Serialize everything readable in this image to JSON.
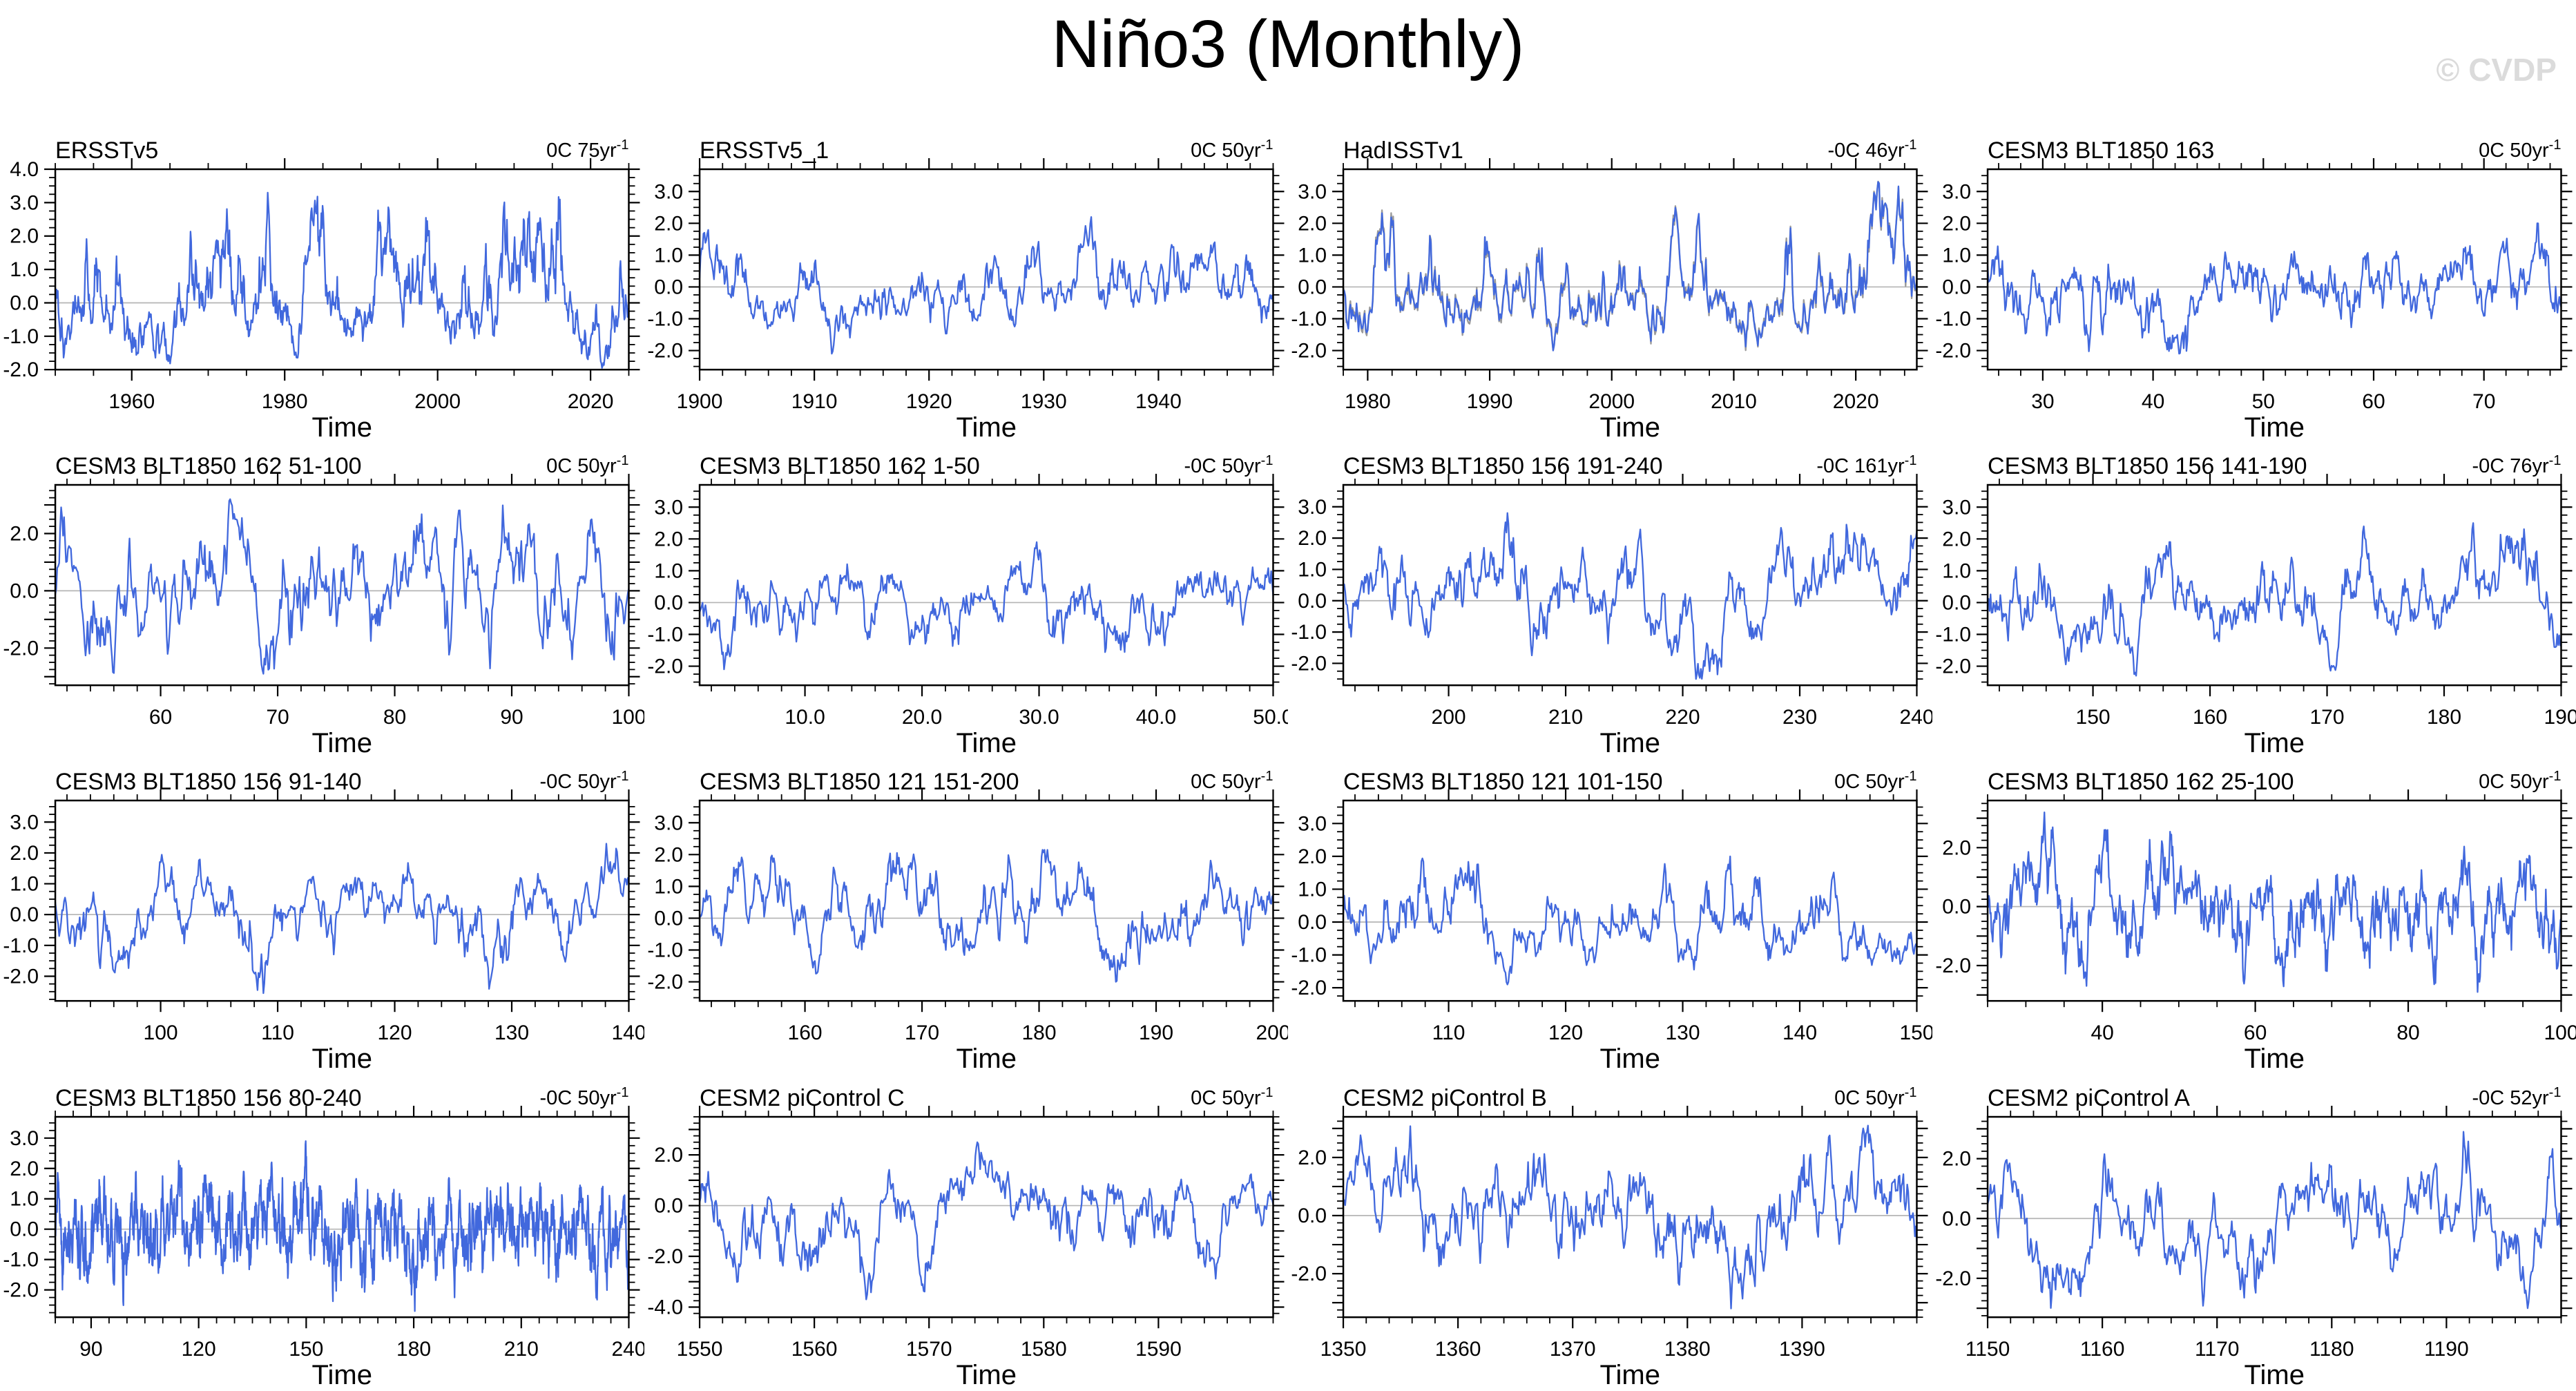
{
  "header": {
    "title": "Niño3 (Monthly)",
    "watermark": "© CVDP"
  },
  "colors": {
    "series_primary": "#4168dd",
    "series_secondary": "#9a9a9a",
    "zero_line": "#b4b4b4",
    "frame": "#000000",
    "watermark": "#dbdbdb"
  },
  "axis": {
    "xlabel": "Time"
  },
  "chart_data": [
    {
      "type": "line",
      "title": "ERSSTv5",
      "trend_label": "0C 75yr",
      "trend_sup": "-1",
      "xlabel": "Time",
      "xlim": [
        1950,
        2025
      ],
      "xticks": [
        1960,
        1980,
        2000,
        2020
      ],
      "xtick_labels": [
        "1960",
        "1980",
        "2000",
        "2020"
      ],
      "x_minor_step": 5,
      "ylim": [
        -2,
        4
      ],
      "ytick_major_step": 1,
      "y_minor_step": 0.25,
      "ytick_label_values": [
        -2,
        -1,
        0,
        1,
        2,
        3,
        4
      ],
      "ytick_labels": [
        "-2.0",
        "-1.0",
        "0.0",
        "1.0",
        "2.0",
        "3.0",
        "4.0"
      ],
      "zero_line": true,
      "series": [
        {
          "name": "nino3-sst-anomaly",
          "color": "#4168dd",
          "seed": 101,
          "n_points": 900,
          "persistence": 0.93,
          "approx_max": 3.3,
          "approx_min": -1.95
        }
      ]
    },
    {
      "type": "line",
      "title": "ERSSTv5_1",
      "trend_label": "0C 50yr",
      "trend_sup": "-1",
      "xlabel": "Time",
      "xlim": [
        1900,
        1950
      ],
      "xticks": [
        1900,
        1910,
        1920,
        1930,
        1940
      ],
      "xtick_labels": [
        "1900",
        "1910",
        "1920",
        "1930",
        "1940"
      ],
      "x_minor_step": 2,
      "ylim": [
        -2.6,
        3.7
      ],
      "ytick_major_step": 1,
      "y_minor_step": 0.25,
      "ytick_label_values": [
        -2,
        -1,
        0,
        1,
        2,
        3
      ],
      "ytick_labels": [
        "-2.0",
        "-1.0",
        "0.0",
        "1.0",
        "2.0",
        "3.0"
      ],
      "zero_line": true,
      "series": [
        {
          "name": "nino3-sst-anomaly",
          "color": "#4168dd",
          "seed": 102,
          "n_points": 600,
          "persistence": 0.93,
          "approx_max": 2.2,
          "approx_min": -2.1
        }
      ]
    },
    {
      "type": "line",
      "title": "HadISSTv1",
      "trend_label": "-0C 46yr",
      "trend_sup": "-1",
      "xlabel": "Time",
      "xlim": [
        1978,
        2025
      ],
      "xticks": [
        1980,
        1990,
        2000,
        2010,
        2020
      ],
      "xtick_labels": [
        "1980",
        "1990",
        "2000",
        "2010",
        "2020"
      ],
      "x_minor_step": 2,
      "ylim": [
        -2.6,
        3.7
      ],
      "ytick_major_step": 1,
      "y_minor_step": 0.25,
      "ytick_label_values": [
        -2,
        -1,
        0,
        1,
        2,
        3
      ],
      "ytick_labels": [
        "-2.0",
        "-1.0",
        "0.0",
        "1.0",
        "2.0",
        "3.0"
      ],
      "zero_line": true,
      "series": [
        {
          "name": "nino3-sst-anomaly",
          "color": "#4168dd",
          "seed": 103,
          "n_points": 564,
          "persistence": 0.93,
          "approx_max": 3.3,
          "approx_min": -2.0
        },
        {
          "name": "nino3-sst-anomaly-raw",
          "color": "#9a9a9a",
          "seed": 203,
          "derived_from_primary": true,
          "offset_noise": 0.28
        }
      ]
    },
    {
      "type": "line",
      "title": "CESM3 BLT1850 163",
      "trend_label": "0C 50yr",
      "trend_sup": "-1",
      "xlabel": "Time",
      "xlim": [
        25,
        77
      ],
      "xticks": [
        30,
        40,
        50,
        60,
        70
      ],
      "xtick_labels": [
        "30",
        "40",
        "50",
        "60",
        "70"
      ],
      "x_minor_step": 2,
      "ylim": [
        -2.6,
        3.7
      ],
      "ytick_major_step": 1,
      "y_minor_step": 0.25,
      "ytick_label_values": [
        -2,
        -1,
        0,
        1,
        2,
        3
      ],
      "ytick_labels": [
        "-2.0",
        "-1.0",
        "0.0",
        "1.0",
        "2.0",
        "3.0"
      ],
      "zero_line": true,
      "series": [
        {
          "name": "nino3-sst-anomaly",
          "color": "#4168dd",
          "seed": 104,
          "n_points": 624,
          "persistence": 0.92,
          "approx_max": 2.0,
          "approx_min": -2.1
        }
      ]
    },
    {
      "type": "line",
      "title": "CESM3 BLT1850 162 51-100",
      "trend_label": "0C 50yr",
      "trend_sup": "-1",
      "xlabel": "Time",
      "xlim": [
        51,
        100
      ],
      "xticks": [
        60,
        70,
        80,
        90,
        100
      ],
      "xtick_labels": [
        "60",
        "70",
        "80",
        "90",
        "100"
      ],
      "x_minor_step": 2,
      "ylim": [
        -3.3,
        3.7
      ],
      "ytick_major_step": 1,
      "y_minor_step": 0.25,
      "ytick_label_values": [
        -2,
        0,
        2
      ],
      "ytick_labels": [
        "-2.0",
        "0.0",
        "2.0"
      ],
      "zero_line": true,
      "series": [
        {
          "name": "nino3-sst-anomaly",
          "color": "#4168dd",
          "seed": 105,
          "n_points": 588,
          "persistence": 0.93,
          "approx_max": 3.2,
          "approx_min": -2.9
        }
      ]
    },
    {
      "type": "line",
      "title": "CESM3 BLT1850 162 1-50",
      "trend_label": "-0C 50yr",
      "trend_sup": "-1",
      "xlabel": "Time",
      "xlim": [
        1,
        50
      ],
      "xticks": [
        10,
        20,
        30,
        40,
        50
      ],
      "xtick_labels": [
        "10.0",
        "20.0",
        "30.0",
        "40.0",
        "50.0"
      ],
      "x_minor_step": 2,
      "ylim": [
        -2.6,
        3.7
      ],
      "ytick_major_step": 1,
      "y_minor_step": 0.25,
      "ytick_label_values": [
        -2,
        -1,
        0,
        1,
        2,
        3
      ],
      "ytick_labels": [
        "-2.0",
        "-1.0",
        "0.0",
        "1.0",
        "2.0",
        "3.0"
      ],
      "zero_line": true,
      "series": [
        {
          "name": "nino3-sst-anomaly",
          "color": "#4168dd",
          "seed": 106,
          "n_points": 588,
          "persistence": 0.93,
          "approx_max": 1.9,
          "approx_min": -2.1
        }
      ]
    },
    {
      "type": "line",
      "title": "CESM3 BLT1850 156 191-240",
      "trend_label": "-0C 161yr",
      "trend_sup": "-1",
      "xlabel": "Time",
      "xlim": [
        191,
        240
      ],
      "xticks": [
        200,
        210,
        220,
        230,
        240
      ],
      "xtick_labels": [
        "200",
        "210",
        "220",
        "230",
        "240"
      ],
      "x_minor_step": 2,
      "ylim": [
        -2.7,
        3.7
      ],
      "ytick_major_step": 1,
      "y_minor_step": 0.25,
      "ytick_label_values": [
        -2,
        -1,
        0,
        1,
        2,
        3
      ],
      "ytick_labels": [
        "-2.0",
        "-1.0",
        "0.0",
        "1.0",
        "2.0",
        "3.0"
      ],
      "zero_line": true,
      "series": [
        {
          "name": "nino3-sst-anomaly",
          "color": "#4168dd",
          "seed": 107,
          "n_points": 588,
          "persistence": 0.93,
          "approx_max": 2.8,
          "approx_min": -2.5
        }
      ]
    },
    {
      "type": "line",
      "title": "CESM3 BLT1850 156 141-190",
      "trend_label": "-0C 76yr",
      "trend_sup": "-1",
      "xlabel": "Time",
      "xlim": [
        141,
        190
      ],
      "xticks": [
        150,
        160,
        170,
        180,
        190
      ],
      "xtick_labels": [
        "150",
        "160",
        "170",
        "180",
        "190"
      ],
      "x_minor_step": 2,
      "ylim": [
        -2.6,
        3.7
      ],
      "ytick_major_step": 1,
      "y_minor_step": 0.25,
      "ytick_label_values": [
        -2,
        -1,
        0,
        1,
        2,
        3
      ],
      "ytick_labels": [
        "-2.0",
        "-1.0",
        "0.0",
        "1.0",
        "2.0",
        "3.0"
      ],
      "zero_line": true,
      "series": [
        {
          "name": "nino3-sst-anomaly",
          "color": "#4168dd",
          "seed": 108,
          "n_points": 588,
          "persistence": 0.93,
          "approx_max": 2.5,
          "approx_min": -2.3
        }
      ]
    },
    {
      "type": "line",
      "title": "CESM3 BLT1850 156 91-140",
      "trend_label": "-0C 50yr",
      "trend_sup": "-1",
      "xlabel": "Time",
      "xlim": [
        91,
        140
      ],
      "xticks": [
        100,
        110,
        120,
        130,
        140
      ],
      "xtick_labels": [
        "100",
        "110",
        "120",
        "130",
        "140"
      ],
      "x_minor_step": 2,
      "ylim": [
        -2.8,
        3.7
      ],
      "ytick_major_step": 1,
      "y_minor_step": 0.25,
      "ytick_label_values": [
        -2,
        -1,
        0,
        1,
        2,
        3
      ],
      "ytick_labels": [
        "-2.0",
        "-1.0",
        "0.0",
        "1.0",
        "2.0",
        "3.0"
      ],
      "zero_line": true,
      "series": [
        {
          "name": "nino3-sst-anomaly",
          "color": "#4168dd",
          "seed": 109,
          "n_points": 588,
          "persistence": 0.93,
          "approx_max": 2.3,
          "approx_min": -2.55
        }
      ]
    },
    {
      "type": "line",
      "title": "CESM3 BLT1850 121 151-200",
      "trend_label": "0C 50yr",
      "trend_sup": "-1",
      "xlabel": "Time",
      "xlim": [
        151,
        200
      ],
      "xticks": [
        160,
        170,
        180,
        190,
        200
      ],
      "xtick_labels": [
        "160",
        "170",
        "180",
        "190",
        "200"
      ],
      "x_minor_step": 2,
      "ylim": [
        -2.6,
        3.7
      ],
      "ytick_major_step": 1,
      "y_minor_step": 0.25,
      "ytick_label_values": [
        -2,
        -1,
        0,
        1,
        2,
        3
      ],
      "ytick_labels": [
        "-2.0",
        "-1.0",
        "0.0",
        "1.0",
        "2.0",
        "3.0"
      ],
      "zero_line": true,
      "series": [
        {
          "name": "nino3-sst-anomaly",
          "color": "#4168dd",
          "seed": 110,
          "n_points": 588,
          "persistence": 0.93,
          "approx_max": 2.15,
          "approx_min": -2.0
        }
      ]
    },
    {
      "type": "line",
      "title": "CESM3 BLT1850 121 101-150",
      "trend_label": "0C 50yr",
      "trend_sup": "-1",
      "xlabel": "Time",
      "xlim": [
        101,
        150
      ],
      "xticks": [
        110,
        120,
        130,
        140,
        150
      ],
      "xtick_labels": [
        "110",
        "120",
        "130",
        "140",
        "150"
      ],
      "x_minor_step": 2,
      "ylim": [
        -2.4,
        3.7
      ],
      "ytick_major_step": 1,
      "y_minor_step": 0.25,
      "ytick_label_values": [
        -2,
        -1,
        0,
        1,
        2,
        3
      ],
      "ytick_labels": [
        "-2.0",
        "-1.0",
        "0.0",
        "1.0",
        "2.0",
        "3.0"
      ],
      "zero_line": true,
      "series": [
        {
          "name": "nino3-sst-anomaly",
          "color": "#4168dd",
          "seed": 111,
          "n_points": 588,
          "persistence": 0.93,
          "approx_max": 2.0,
          "approx_min": -1.9
        }
      ]
    },
    {
      "type": "line",
      "title": "CESM3 BLT1850 162 25-100",
      "trend_label": "0C 50yr",
      "trend_sup": "-1",
      "xlabel": "Time",
      "xlim": [
        25,
        100
      ],
      "xticks": [
        40,
        60,
        80,
        100
      ],
      "xtick_labels": [
        "40",
        "60",
        "80",
        "100"
      ],
      "x_minor_step": 5,
      "ylim": [
        -3.2,
        3.6
      ],
      "ytick_major_step": 1,
      "y_minor_step": 0.25,
      "ytick_label_values": [
        -2,
        0,
        2
      ],
      "ytick_labels": [
        "-2.0",
        "0.0",
        "2.0"
      ],
      "zero_line": true,
      "series": [
        {
          "name": "nino3-sst-anomaly",
          "color": "#4168dd",
          "seed": 112,
          "n_points": 900,
          "persistence": 0.9,
          "approx_max": 3.2,
          "approx_min": -2.9
        }
      ]
    },
    {
      "type": "line",
      "title": "CESM3 BLT1850 156 80-240",
      "trend_label": "-0C 50yr",
      "trend_sup": "-1",
      "xlabel": "Time",
      "xlim": [
        80,
        240
      ],
      "xticks": [
        90,
        120,
        150,
        180,
        210,
        240
      ],
      "xtick_labels": [
        "90",
        "120",
        "150",
        "180",
        "210",
        "240"
      ],
      "x_minor_step": 5,
      "ylim": [
        -2.9,
        3.7
      ],
      "ytick_major_step": 1,
      "y_minor_step": 0.25,
      "ytick_label_values": [
        -2,
        -1,
        0,
        1,
        2,
        3
      ],
      "ytick_labels": [
        "-2.0",
        "-1.0",
        "0.0",
        "1.0",
        "2.0",
        "3.0"
      ],
      "zero_line": true,
      "series": [
        {
          "name": "nino3-sst-anomaly",
          "color": "#4168dd",
          "seed": 113,
          "n_points": 1920,
          "persistence": 0.85,
          "approx_max": 2.9,
          "approx_min": -2.7
        }
      ]
    },
    {
      "type": "line",
      "title": "CESM2 piControl C",
      "trend_label": "0C 50yr",
      "trend_sup": "-1",
      "xlabel": "Time",
      "xlim": [
        1550,
        1600
      ],
      "xticks": [
        1550,
        1560,
        1570,
        1580,
        1590
      ],
      "xtick_labels": [
        "1550",
        "1560",
        "1570",
        "1580",
        "1590"
      ],
      "x_minor_step": 2,
      "ylim": [
        -4.4,
        3.5
      ],
      "ytick_major_step": 1,
      "y_minor_step": 0.25,
      "ytick_label_values": [
        -4,
        -2,
        0,
        2
      ],
      "ytick_labels": [
        "-4.0",
        "-2.0",
        "0.0",
        "2.0"
      ],
      "zero_line": true,
      "series": [
        {
          "name": "nino3-sst-anomaly",
          "color": "#4168dd",
          "seed": 114,
          "n_points": 600,
          "persistence": 0.95,
          "approx_max": 2.5,
          "approx_min": -3.7
        }
      ]
    },
    {
      "type": "line",
      "title": "CESM2 piControl B",
      "trend_label": "0C 50yr",
      "trend_sup": "-1",
      "xlabel": "Time",
      "xlim": [
        1350,
        1400
      ],
      "xticks": [
        1350,
        1360,
        1370,
        1380,
        1390
      ],
      "xtick_labels": [
        "1350",
        "1360",
        "1370",
        "1380",
        "1390"
      ],
      "x_minor_step": 2,
      "ylim": [
        -3.5,
        3.4
      ],
      "ytick_major_step": 1,
      "y_minor_step": 0.25,
      "ytick_label_values": [
        -2,
        0,
        2
      ],
      "ytick_labels": [
        "-2.0",
        "0.0",
        "2.0"
      ],
      "zero_line": true,
      "series": [
        {
          "name": "nino3-sst-anomaly",
          "color": "#4168dd",
          "seed": 115,
          "n_points": 600,
          "persistence": 0.95,
          "approx_max": 3.1,
          "approx_min": -3.2
        }
      ]
    },
    {
      "type": "line",
      "title": "CESM2 piControl A",
      "trend_label": "-0C 52yr",
      "trend_sup": "-1",
      "xlabel": "Time",
      "xlim": [
        1150,
        1200
      ],
      "xticks": [
        1150,
        1160,
        1170,
        1180,
        1190
      ],
      "xtick_labels": [
        "1150",
        "1160",
        "1170",
        "1180",
        "1190"
      ],
      "x_minor_step": 2,
      "ylim": [
        -3.3,
        3.4
      ],
      "ytick_major_step": 1,
      "y_minor_step": 0.25,
      "ytick_label_values": [
        -2,
        0,
        2
      ],
      "ytick_labels": [
        "-2.0",
        "0.0",
        "2.0"
      ],
      "zero_line": true,
      "series": [
        {
          "name": "nino3-sst-anomaly",
          "color": "#4168dd",
          "seed": 116,
          "n_points": 600,
          "persistence": 0.95,
          "approx_max": 2.9,
          "approx_min": -3.0
        }
      ]
    }
  ]
}
